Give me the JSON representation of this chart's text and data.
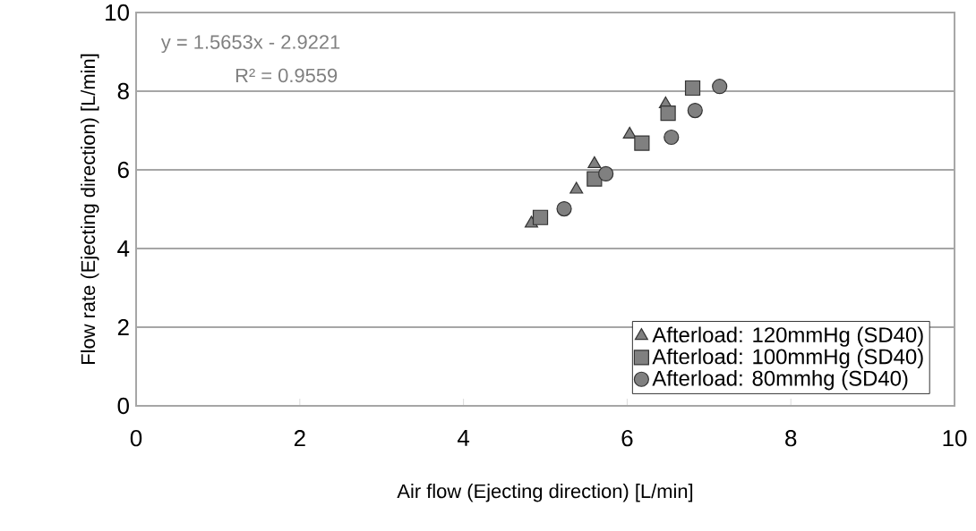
{
  "chart_data": {
    "type": "scatter",
    "xlabel": "Air flow (Ejecting direction) [L/min]",
    "ylabel": "Flow rate (Ejecting direction) [L/min]",
    "xlim": [
      0,
      10
    ],
    "ylim": [
      0,
      10
    ],
    "xticks": [
      0,
      2,
      4,
      6,
      8,
      10
    ],
    "yticks": [
      0,
      2,
      4,
      6,
      8,
      10
    ],
    "grid": "y",
    "legend": "bottom right",
    "annotations": [
      "y = 1.5653x - 2.9221",
      "R² = 0.9559"
    ],
    "series": [
      {
        "name": "Afterload: 120mmHg (SD40)",
        "color": "#808080",
        "marker": "triangle",
        "x": [
          4.83,
          5.38,
          5.6,
          6.03,
          6.47
        ],
        "values": [
          4.64,
          5.5,
          6.15,
          6.9,
          7.67
        ]
      },
      {
        "name": "Afterload: 100mmHg (SD40)",
        "color": "#808080",
        "marker": "square",
        "x": [
          4.94,
          5.6,
          6.18,
          6.5,
          6.8
        ],
        "values": [
          4.79,
          5.77,
          6.68,
          7.44,
          8.08
        ]
      },
      {
        "name": "Afterload: 80mmhg (SD40)",
        "color": "#808080",
        "marker": "circle",
        "x": [
          5.23,
          5.74,
          6.54,
          6.83,
          7.13
        ],
        "values": [
          5.01,
          5.9,
          6.83,
          7.51,
          8.12
        ]
      }
    ]
  }
}
